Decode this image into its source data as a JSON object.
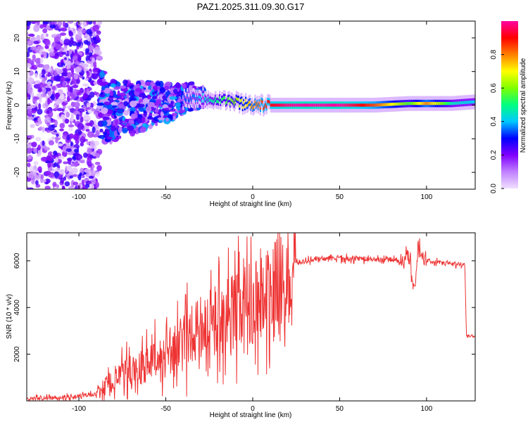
{
  "title": "PAZ1.2025.311.09.30.G17",
  "chart_data": [
    {
      "type": "heatmap",
      "xlabel": "Height of straight line (km)",
      "ylabel": "Frequency (Hz)",
      "xlim": [
        -130,
        128
      ],
      "ylim": [
        -25,
        25
      ],
      "xticks": [
        "-100",
        "-50",
        "0",
        "50",
        "100"
      ],
      "xtick_values": [
        -100,
        -50,
        0,
        50,
        100
      ],
      "yticks": [
        "-20",
        "-10",
        "0",
        "10",
        "20"
      ],
      "ytick_values": [
        -20,
        -10,
        0,
        10,
        20
      ],
      "colorbar": {
        "label": "Normalized spectral amplitude",
        "range": [
          0,
          1
        ],
        "ticks": [
          "0.0",
          "0.2",
          "0.4",
          "0.6",
          "0.8"
        ],
        "tick_values": [
          0,
          0.2,
          0.4,
          0.6,
          0.8
        ],
        "colormap": [
          "#f0e0ff",
          "#c080ff",
          "#8000ff",
          "#0000ff",
          "#00c8ff",
          "#00ff80",
          "#80ff00",
          "#ffff00",
          "#ff8000",
          "#ff0000",
          "#ff00a0"
        ]
      },
      "ridge": [
        {
          "x": -85,
          "freq": -2.0,
          "amp": 0.15
        },
        {
          "x": -75,
          "freq": -1.5,
          "amp": 0.2
        },
        {
          "x": -65,
          "freq": -0.5,
          "amp": 0.25
        },
        {
          "x": -55,
          "freq": 0.5,
          "amp": 0.3
        },
        {
          "x": -45,
          "freq": 1.0,
          "amp": 0.3
        },
        {
          "x": -35,
          "freq": 2.5,
          "amp": 0.35
        },
        {
          "x": -25,
          "freq": 2.0,
          "amp": 0.45
        },
        {
          "x": -15,
          "freq": 1.5,
          "amp": 0.55
        },
        {
          "x": -5,
          "freq": 0.5,
          "amp": 0.7
        },
        {
          "x": 5,
          "freq": 0.0,
          "amp": 0.85
        },
        {
          "x": 15,
          "freq": 0.0,
          "amp": 0.95
        },
        {
          "x": 25,
          "freq": 0.0,
          "amp": 1.0
        },
        {
          "x": 50,
          "freq": 0.0,
          "amp": 1.0
        },
        {
          "x": 70,
          "freq": 0.0,
          "amp": 0.85
        },
        {
          "x": 90,
          "freq": 0.5,
          "amp": 0.55
        },
        {
          "x": 100,
          "freq": 0.5,
          "amp": 0.8
        },
        {
          "x": 115,
          "freq": 0.5,
          "amp": 0.45
        },
        {
          "x": 128,
          "freq": 1.0,
          "amp": 0.4
        }
      ]
    },
    {
      "type": "line",
      "xlabel": "Height of straight line (km)",
      "ylabel": "SNR (10 * v/v)",
      "xlim": [
        -130,
        128
      ],
      "ylim": [
        0,
        7200
      ],
      "xticks": [
        "-100",
        "-50",
        "0",
        "50",
        "100"
      ],
      "xtick_values": [
        -100,
        -50,
        0,
        50,
        100
      ],
      "yticks": [
        "2000",
        "4000",
        "6000"
      ],
      "ytick_values": [
        2000,
        4000,
        6000
      ],
      "color": "#ee3333",
      "series": [
        {
          "name": "SNR",
          "x": [
            -130,
            -110,
            -100,
            -90,
            -85,
            -80,
            -75,
            -70,
            -65,
            -60,
            -55,
            -50,
            -45,
            -40,
            -35,
            -30,
            -25,
            -20,
            -15,
            -10,
            -5,
            0,
            5,
            10,
            15,
            20,
            25,
            30,
            40,
            50,
            60,
            70,
            80,
            85,
            90,
            93,
            95,
            100,
            110,
            122,
            123,
            128
          ],
          "y": [
            100,
            150,
            200,
            300,
            600,
            900,
            1100,
            1300,
            1400,
            1600,
            1800,
            1900,
            2200,
            2500,
            2800,
            3100,
            3300,
            3500,
            3700,
            3900,
            4100,
            4300,
            4500,
            4700,
            4900,
            5200,
            5900,
            6000,
            6100,
            6100,
            6100,
            6050,
            6050,
            6000,
            6200,
            4500,
            6500,
            6000,
            5900,
            5850,
            2800,
            2800
          ]
        }
      ]
    }
  ]
}
